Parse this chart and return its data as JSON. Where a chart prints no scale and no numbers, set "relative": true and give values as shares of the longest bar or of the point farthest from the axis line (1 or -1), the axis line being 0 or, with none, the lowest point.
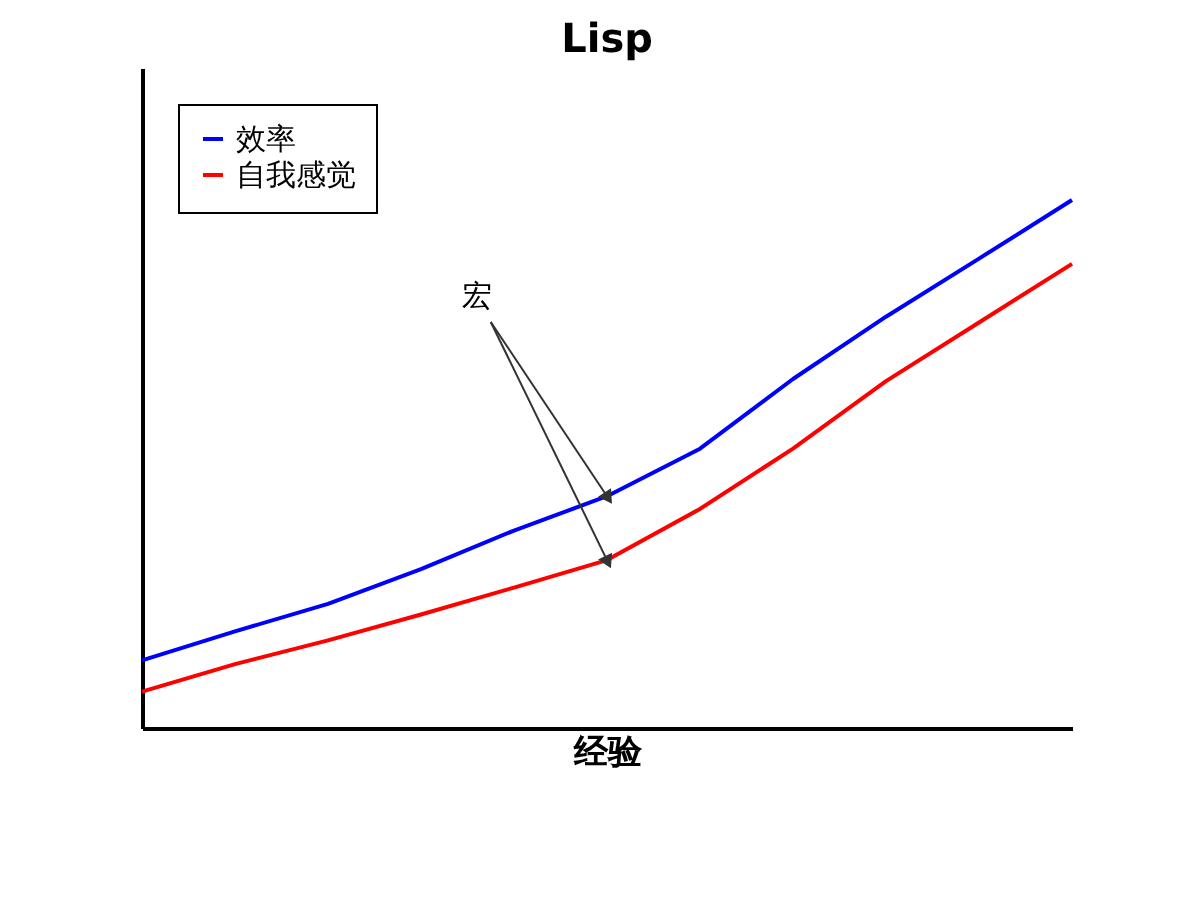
{
  "chart_data": {
    "type": "line",
    "title": "Lisp",
    "xlabel": "经验",
    "relative": true,
    "categories": [
      null,
      null,
      null,
      null,
      null,
      null,
      null,
      null,
      null,
      null,
      null
    ],
    "series": [
      {
        "name": "效率",
        "color": "#0000ff",
        "values": [
          0.128,
          0.183,
          0.235,
          0.301,
          0.374,
          0.439,
          0.529,
          0.661,
          0.779,
          0.889,
          1.0
        ]
      },
      {
        "name": "自我感觉",
        "color": "#ff0000",
        "values": [
          0.069,
          0.121,
          0.166,
          0.215,
          0.266,
          0.318,
          0.415,
          0.529,
          0.657,
          0.768,
          0.879
        ]
      }
    ],
    "annotations": [
      "宏"
    ],
    "grid": false,
    "legend": "top left",
    "marker": "none",
    "line_style": "solid"
  }
}
